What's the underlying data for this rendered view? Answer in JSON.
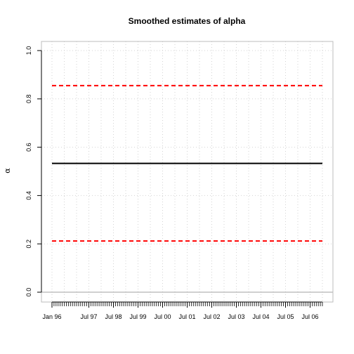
{
  "chart_data": {
    "type": "line",
    "title": "Smoothed estimates of alpha",
    "xlabel": "",
    "ylabel": "α",
    "ylim": [
      0,
      1
    ],
    "x_start": "Jan 96",
    "x_end": "Dec 06",
    "yticks": [
      "0.0",
      "0.2",
      "0.4",
      "0.6",
      "0.8",
      "1.0"
    ],
    "xtick_labels": [
      "Jan 96",
      "Jul 97",
      "Jul 98",
      "Jul 99",
      "Jul 00",
      "Jul 01",
      "Jul 02",
      "Jul 03",
      "Jul 04",
      "Jul 05",
      "Jul 06"
    ],
    "grid": true,
    "reference_line_y": 0.0,
    "series": [
      {
        "values": [
          0.855,
          0.855
        ],
        "color": "#ff0000",
        "style": "dashed"
      },
      {
        "values": [
          0.533,
          0.533
        ],
        "color": "#000000",
        "style": "solid"
      },
      {
        "values": [
          0.212,
          0.212
        ],
        "color": "#ff0000",
        "style": "dashed"
      }
    ]
  }
}
